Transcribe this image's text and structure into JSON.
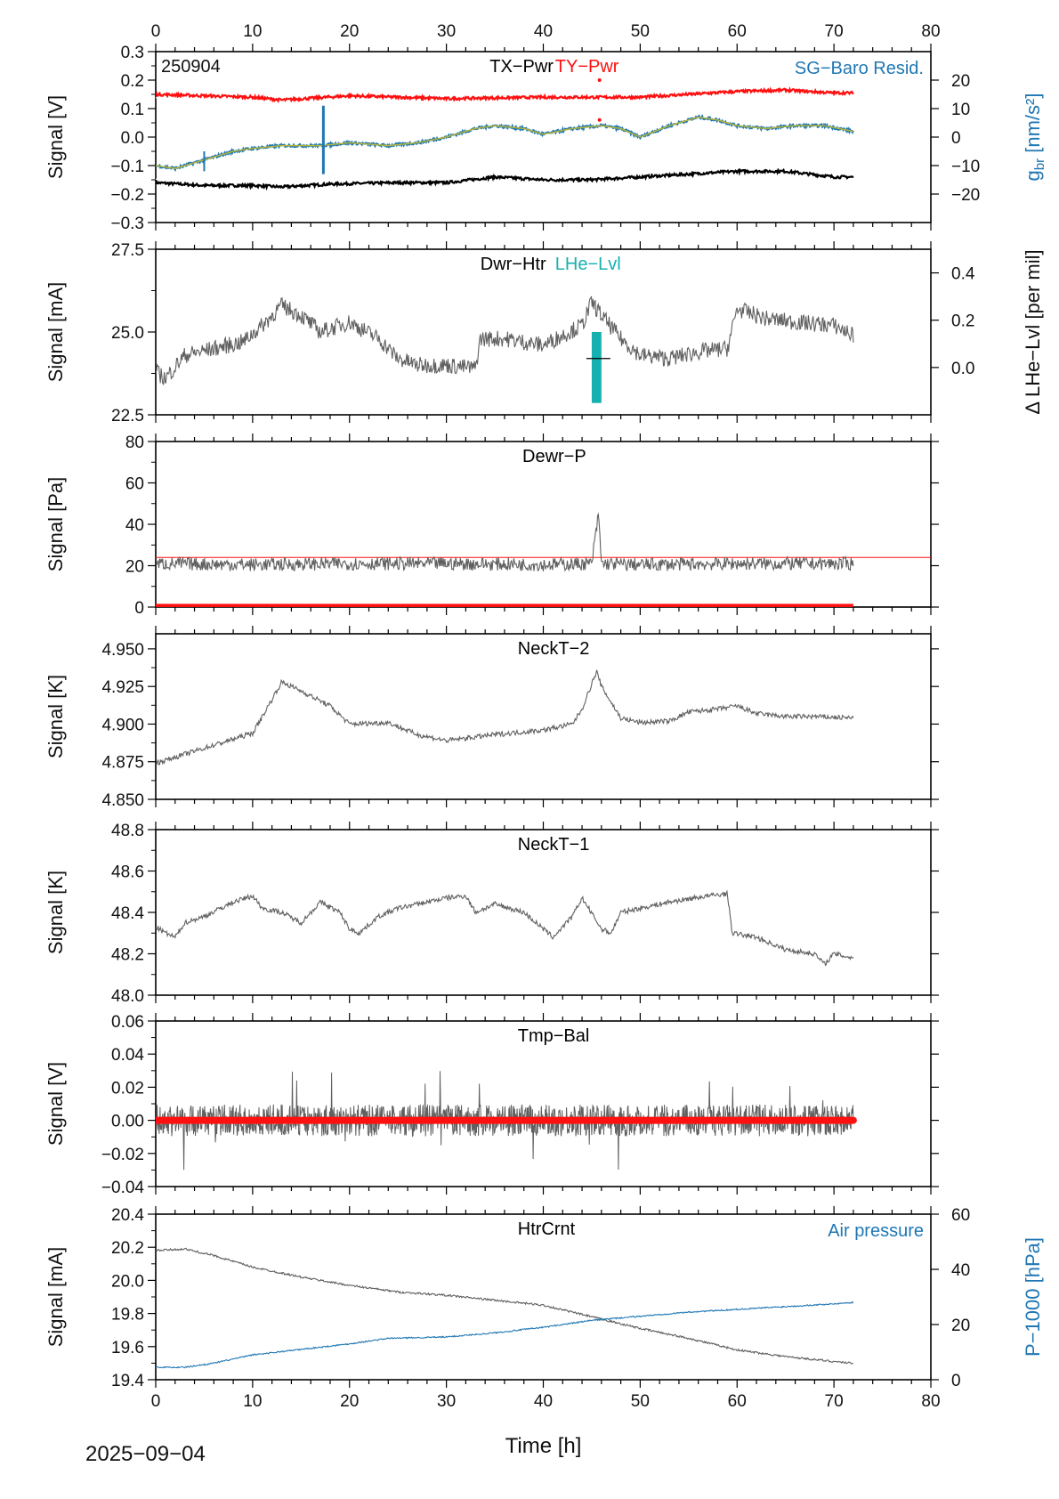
{
  "footer": {
    "date": "2025−09−04"
  },
  "x_axis": {
    "label": "Time [h]",
    "lim": [
      0,
      80
    ],
    "ticks": [
      0,
      10,
      20,
      30,
      40,
      50,
      60,
      70,
      80
    ],
    "data_end": 72
  },
  "colors": {
    "gray": "#606060",
    "red": "#ff1010",
    "blue": "#1f77b4",
    "teal": "#17b0b0",
    "olive": "#b5b43a",
    "black": "#000000"
  },
  "chart_data": [
    {
      "id": "p1",
      "type": "line",
      "tag": "250904",
      "titles": [
        {
          "text": "TX−Pwr",
          "color": "black"
        },
        {
          "text": "TY−Pwr",
          "color": "red"
        }
      ],
      "right_title": {
        "text": "SG−Baro Resid.",
        "color": "blue"
      },
      "ylabel": "Signal [V]",
      "ylim": [
        -0.3,
        0.3
      ],
      "yticks": [
        -0.3,
        -0.2,
        -0.1,
        0.0,
        0.1,
        0.2,
        0.3
      ],
      "yticklabels": [
        "−0.3",
        "−0.2",
        "−0.1",
        "0.0",
        "0.1",
        "0.2",
        "0.3"
      ],
      "y2label": "g_br [nm/s²]",
      "y2label_main": "g",
      "y2label_sub": "br",
      "y2label_tail": " [nm/s²]",
      "y2lim": [
        -30,
        30
      ],
      "y2ticks": [
        -20,
        -10,
        0,
        10,
        20
      ],
      "y2ticklabels": [
        "−20",
        "−10",
        "0",
        "10",
        "20"
      ],
      "series": [
        {
          "name": "TX−Pwr",
          "color": "black",
          "axis": "left",
          "x": [
            0,
            5,
            10,
            13,
            18,
            25,
            30,
            35,
            40,
            45,
            50,
            55,
            60,
            65,
            70,
            72
          ],
          "y": [
            -0.16,
            -0.17,
            -0.17,
            -0.175,
            -0.165,
            -0.16,
            -0.16,
            -0.14,
            -0.15,
            -0.15,
            -0.14,
            -0.13,
            -0.12,
            -0.12,
            -0.14,
            -0.14
          ]
        },
        {
          "name": "TY−Pwr",
          "color": "red",
          "axis": "left",
          "x": [
            0,
            5,
            10,
            13,
            20,
            30,
            40,
            45,
            50,
            55,
            60,
            65,
            70,
            72
          ],
          "y": [
            0.15,
            0.145,
            0.14,
            0.13,
            0.145,
            0.135,
            0.14,
            0.14,
            0.14,
            0.15,
            0.16,
            0.165,
            0.155,
            0.155
          ]
        },
        {
          "name": "SG−Baro Resid.",
          "color": "blue",
          "axis": "right",
          "x": [
            0,
            2,
            5,
            8,
            10,
            13,
            17,
            20,
            24,
            27,
            30,
            33,
            35,
            38,
            40,
            43,
            46,
            48,
            50,
            53,
            56,
            58,
            60,
            63,
            66,
            69,
            72
          ],
          "y": [
            -10,
            -11,
            -8,
            -5,
            -4,
            -3,
            -3,
            -2,
            -3,
            -2,
            0,
            3,
            4,
            3,
            1,
            3,
            4,
            3,
            0,
            4,
            7,
            6,
            4,
            3,
            4,
            4,
            2
          ]
        }
      ]
    },
    {
      "id": "p2",
      "type": "line",
      "titles": [
        {
          "text": "Dwr−Htr",
          "color": "black"
        },
        {
          "text": "LHe−Lvl",
          "color": "teal"
        }
      ],
      "ylabel": "Signal [mA]",
      "ylim": [
        22.5,
        27.5
      ],
      "yticks": [
        22.5,
        25.0,
        27.5
      ],
      "yticklabels": [
        "22.5",
        "25.0",
        "27.5"
      ],
      "y2label": "Δ LHe−Lvl [per mil]",
      "y2lim": [
        -0.2,
        0.5
      ],
      "y2ticks": [
        0.0,
        0.2,
        0.4
      ],
      "y2ticklabels": [
        "0.0",
        "0.2",
        "0.4"
      ],
      "series": [
        {
          "name": "Dwr−Htr",
          "color": "gray",
          "axis": "left",
          "x": [
            0,
            1,
            3,
            6,
            9,
            11,
            13,
            15,
            17,
            20,
            23,
            25,
            27,
            30,
            33,
            33.5,
            36,
            40,
            44,
            45,
            46,
            48,
            50,
            53,
            56,
            59,
            60,
            63,
            66,
            70,
            72
          ],
          "y": [
            23.8,
            23.6,
            24.3,
            24.5,
            24.7,
            25.2,
            25.8,
            25.5,
            25.0,
            25.3,
            24.8,
            24.2,
            24.0,
            24.0,
            23.9,
            24.8,
            24.8,
            24.6,
            25.2,
            25.9,
            25.5,
            24.8,
            24.3,
            24.2,
            24.4,
            24.5,
            25.7,
            25.4,
            25.3,
            25.2,
            24.9
          ]
        },
        {
          "name": "LHe−Lvl",
          "color": "teal",
          "axis": "right",
          "x": [
            45,
            45.5,
            46
          ],
          "y": [
            -0.15,
            0.15,
            0.1
          ]
        }
      ]
    },
    {
      "id": "p3",
      "type": "line",
      "titles": [
        {
          "text": "Dewr−P",
          "color": "black"
        }
      ],
      "ylabel": "Signal [Pa]",
      "ylim": [
        0,
        80
      ],
      "yticks": [
        0,
        20,
        40,
        60,
        80
      ],
      "yticklabels": [
        "0",
        "20",
        "40",
        "60",
        "80"
      ],
      "ref_line": {
        "y": 24,
        "color": "red"
      },
      "series": [
        {
          "name": "Dewr−P",
          "color": "gray",
          "axis": "left",
          "x": [
            0,
            10,
            20,
            30,
            40,
            45,
            45.7,
            46,
            50,
            60,
            70,
            72
          ],
          "y": [
            21,
            20.5,
            21,
            21,
            20.5,
            21,
            45,
            21,
            20.5,
            21,
            21,
            21
          ]
        },
        {
          "name": "",
          "color": "red",
          "axis": "left",
          "x": [
            0,
            72
          ],
          "y": [
            0.5,
            0.5
          ]
        }
      ]
    },
    {
      "id": "p4",
      "type": "line",
      "titles": [
        {
          "text": "NeckT−2",
          "color": "black"
        }
      ],
      "ylabel": "Signal [K]",
      "ylim": [
        4.85,
        4.96
      ],
      "yticks": [
        4.85,
        4.875,
        4.9,
        4.925,
        4.95
      ],
      "yticklabels": [
        "4.850",
        "4.875",
        "4.900",
        "4.925",
        "4.950"
      ],
      "series": [
        {
          "name": "NeckT−2",
          "color": "gray",
          "axis": "left",
          "x": [
            0,
            2,
            5,
            8,
            10,
            11,
            13,
            15,
            18,
            20,
            24,
            27,
            30,
            35,
            40,
            43,
            44,
            45.5,
            46,
            48,
            50,
            53,
            55,
            58,
            60,
            62,
            65,
            68,
            72
          ],
          "y": [
            4.874,
            4.878,
            4.884,
            4.89,
            4.894,
            4.905,
            4.928,
            4.922,
            4.912,
            4.9,
            4.901,
            4.893,
            4.889,
            4.893,
            4.896,
            4.9,
            4.91,
            4.935,
            4.925,
            4.904,
            4.901,
            4.902,
            4.908,
            4.91,
            4.912,
            4.907,
            4.905,
            4.905,
            4.904
          ]
        }
      ]
    },
    {
      "id": "p5",
      "type": "line",
      "titles": [
        {
          "text": "NeckT−1",
          "color": "black"
        }
      ],
      "ylabel": "Signal [K]",
      "ylim": [
        48.0,
        48.8
      ],
      "yticks": [
        48.0,
        48.2,
        48.4,
        48.6,
        48.8
      ],
      "yticklabels": [
        "48.0",
        "48.2",
        "48.4",
        "48.6",
        "48.8"
      ],
      "series": [
        {
          "name": "NeckT−1",
          "color": "gray",
          "axis": "left",
          "x": [
            0,
            1,
            2,
            3,
            5,
            8,
            10,
            11,
            13,
            15,
            17,
            19,
            20,
            21,
            23,
            24,
            25,
            27,
            30,
            32,
            33,
            35,
            38,
            40,
            41,
            43,
            44,
            46,
            47,
            48,
            50,
            53,
            57,
            59,
            59.5,
            62,
            65,
            68,
            69,
            70,
            72
          ],
          "y": [
            48.33,
            48.3,
            48.28,
            48.35,
            48.38,
            48.45,
            48.48,
            48.42,
            48.4,
            48.35,
            48.45,
            48.4,
            48.32,
            48.3,
            48.38,
            48.4,
            48.42,
            48.44,
            48.47,
            48.48,
            48.4,
            48.44,
            48.4,
            48.32,
            48.28,
            48.38,
            48.47,
            48.32,
            48.3,
            48.4,
            48.42,
            48.45,
            48.48,
            48.49,
            48.3,
            48.28,
            48.22,
            48.2,
            48.15,
            48.2,
            48.18
          ]
        }
      ]
    },
    {
      "id": "p6",
      "type": "line",
      "titles": [
        {
          "text": "Tmp−Bal",
          "color": "black"
        }
      ],
      "ylabel": "Signal [V]",
      "ylim": [
        -0.04,
        0.06
      ],
      "yticks": [
        -0.04,
        -0.02,
        0.0,
        0.02,
        0.04,
        0.06
      ],
      "yticklabels": [
        "−0.04",
        "−0.02",
        "0.00",
        "0.02",
        "0.04",
        "0.06"
      ],
      "noise": {
        "center": 0.0,
        "band": 0.012,
        "spike": 0.03
      },
      "series": [
        {
          "name": "Tmp−Bal",
          "color": "gray",
          "axis": "left",
          "x": [
            0,
            72
          ],
          "y": [
            0.0,
            0.0
          ]
        },
        {
          "name": "",
          "color": "red",
          "axis": "left",
          "x": [
            0,
            72
          ],
          "y": [
            0.0,
            0.0
          ]
        }
      ]
    },
    {
      "id": "p7",
      "type": "line",
      "titles": [
        {
          "text": "HtrCrnt",
          "color": "black"
        }
      ],
      "right_title": {
        "text": "Air pressure",
        "color": "blue"
      },
      "ylabel": "Signal [mA]",
      "ylim": [
        19.4,
        20.4
      ],
      "yticks": [
        19.4,
        19.6,
        19.8,
        20.0,
        20.2,
        20.4
      ],
      "yticklabels": [
        "19.4",
        "19.6",
        "19.8",
        "20.0",
        "20.2",
        "20.4"
      ],
      "y2label": "P−1000 [hPa]",
      "y2lim": [
        0,
        60
      ],
      "y2ticks": [
        0,
        20,
        40,
        60
      ],
      "y2ticklabels": [
        "0",
        "20",
        "40",
        "60"
      ],
      "series": [
        {
          "name": "HtrCrnt",
          "color": "gray",
          "axis": "left",
          "x": [
            0,
            3,
            6,
            10,
            15,
            20,
            25,
            30,
            35,
            40,
            45,
            50,
            55,
            60,
            65,
            70,
            72
          ],
          "y": [
            20.18,
            20.19,
            20.15,
            20.08,
            20.02,
            19.97,
            19.93,
            19.91,
            19.88,
            19.85,
            19.78,
            19.71,
            19.65,
            19.58,
            19.54,
            19.51,
            19.5
          ]
        },
        {
          "name": "Air pressure",
          "color": "blue",
          "axis": "right",
          "x": [
            0,
            3,
            6,
            10,
            15,
            20,
            24,
            30,
            35,
            40,
            45,
            50,
            55,
            60,
            65,
            70,
            72
          ],
          "y": [
            4.5,
            4.5,
            6,
            9,
            11,
            13,
            15,
            15.5,
            17,
            19,
            21.5,
            23,
            24.5,
            25.5,
            26.5,
            27.5,
            28
          ]
        }
      ]
    }
  ]
}
